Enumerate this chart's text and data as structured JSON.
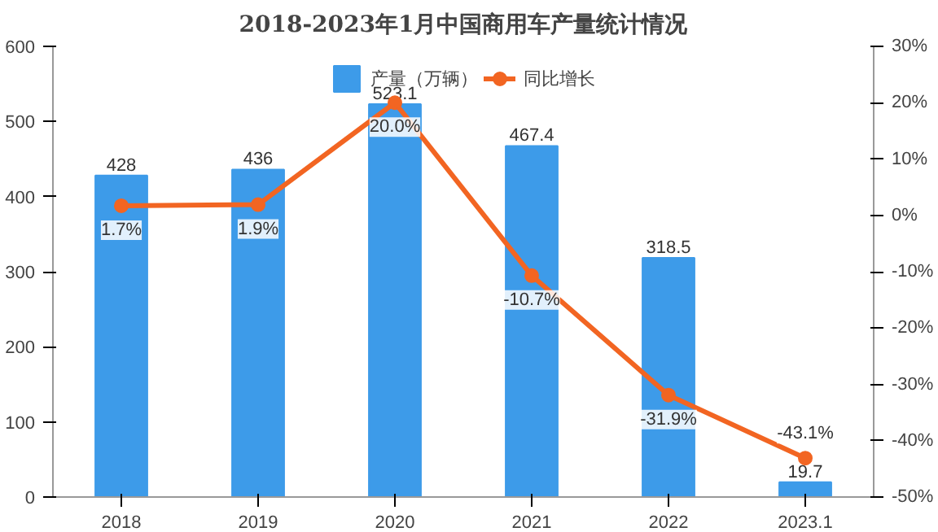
{
  "chart_data": {
    "type": "bar",
    "title": "2018-2023年1月中国商用车产量统计情况",
    "categories": [
      "2018",
      "2019",
      "2020",
      "2021",
      "2022",
      "2023.1"
    ],
    "series": [
      {
        "name": "产量（万辆）",
        "color": "#3d9be9",
        "values": [
          428,
          436,
          523.1,
          467.4,
          318.5,
          19.7
        ],
        "value_labels": [
          "428",
          "436",
          "523.1",
          "467.4",
          "318.5",
          "19.7"
        ]
      },
      {
        "name": "同比增长",
        "type": "line",
        "axis": "y2",
        "color": "#f26522",
        "marker": "circle",
        "values": [
          1.7,
          1.9,
          20.0,
          -10.7,
          -31.9,
          -43.1
        ],
        "value_labels": [
          "1.7%",
          "1.9%",
          "20.0%",
          "-10.7%",
          "-31.9%",
          "-43.1%"
        ]
      }
    ],
    "ylim": [
      0,
      600
    ],
    "yticks": [
      0,
      100,
      200,
      300,
      400,
      500,
      600
    ],
    "y2lim": [
      -50,
      30
    ],
    "y2ticks": [
      {
        "value": 30,
        "label": "30%"
      },
      {
        "value": 20,
        "label": "20%"
      },
      {
        "value": 10,
        "label": "10%"
      },
      {
        "value": 0,
        "label": "0%"
      },
      {
        "value": -10,
        "label": "-10%"
      },
      {
        "value": -20,
        "label": "-20%"
      },
      {
        "value": -30,
        "label": "-30%"
      },
      {
        "value": -40,
        "label": "-40%"
      },
      {
        "value": -50,
        "label": "-50%"
      }
    ],
    "legend": "top",
    "grid": false
  }
}
